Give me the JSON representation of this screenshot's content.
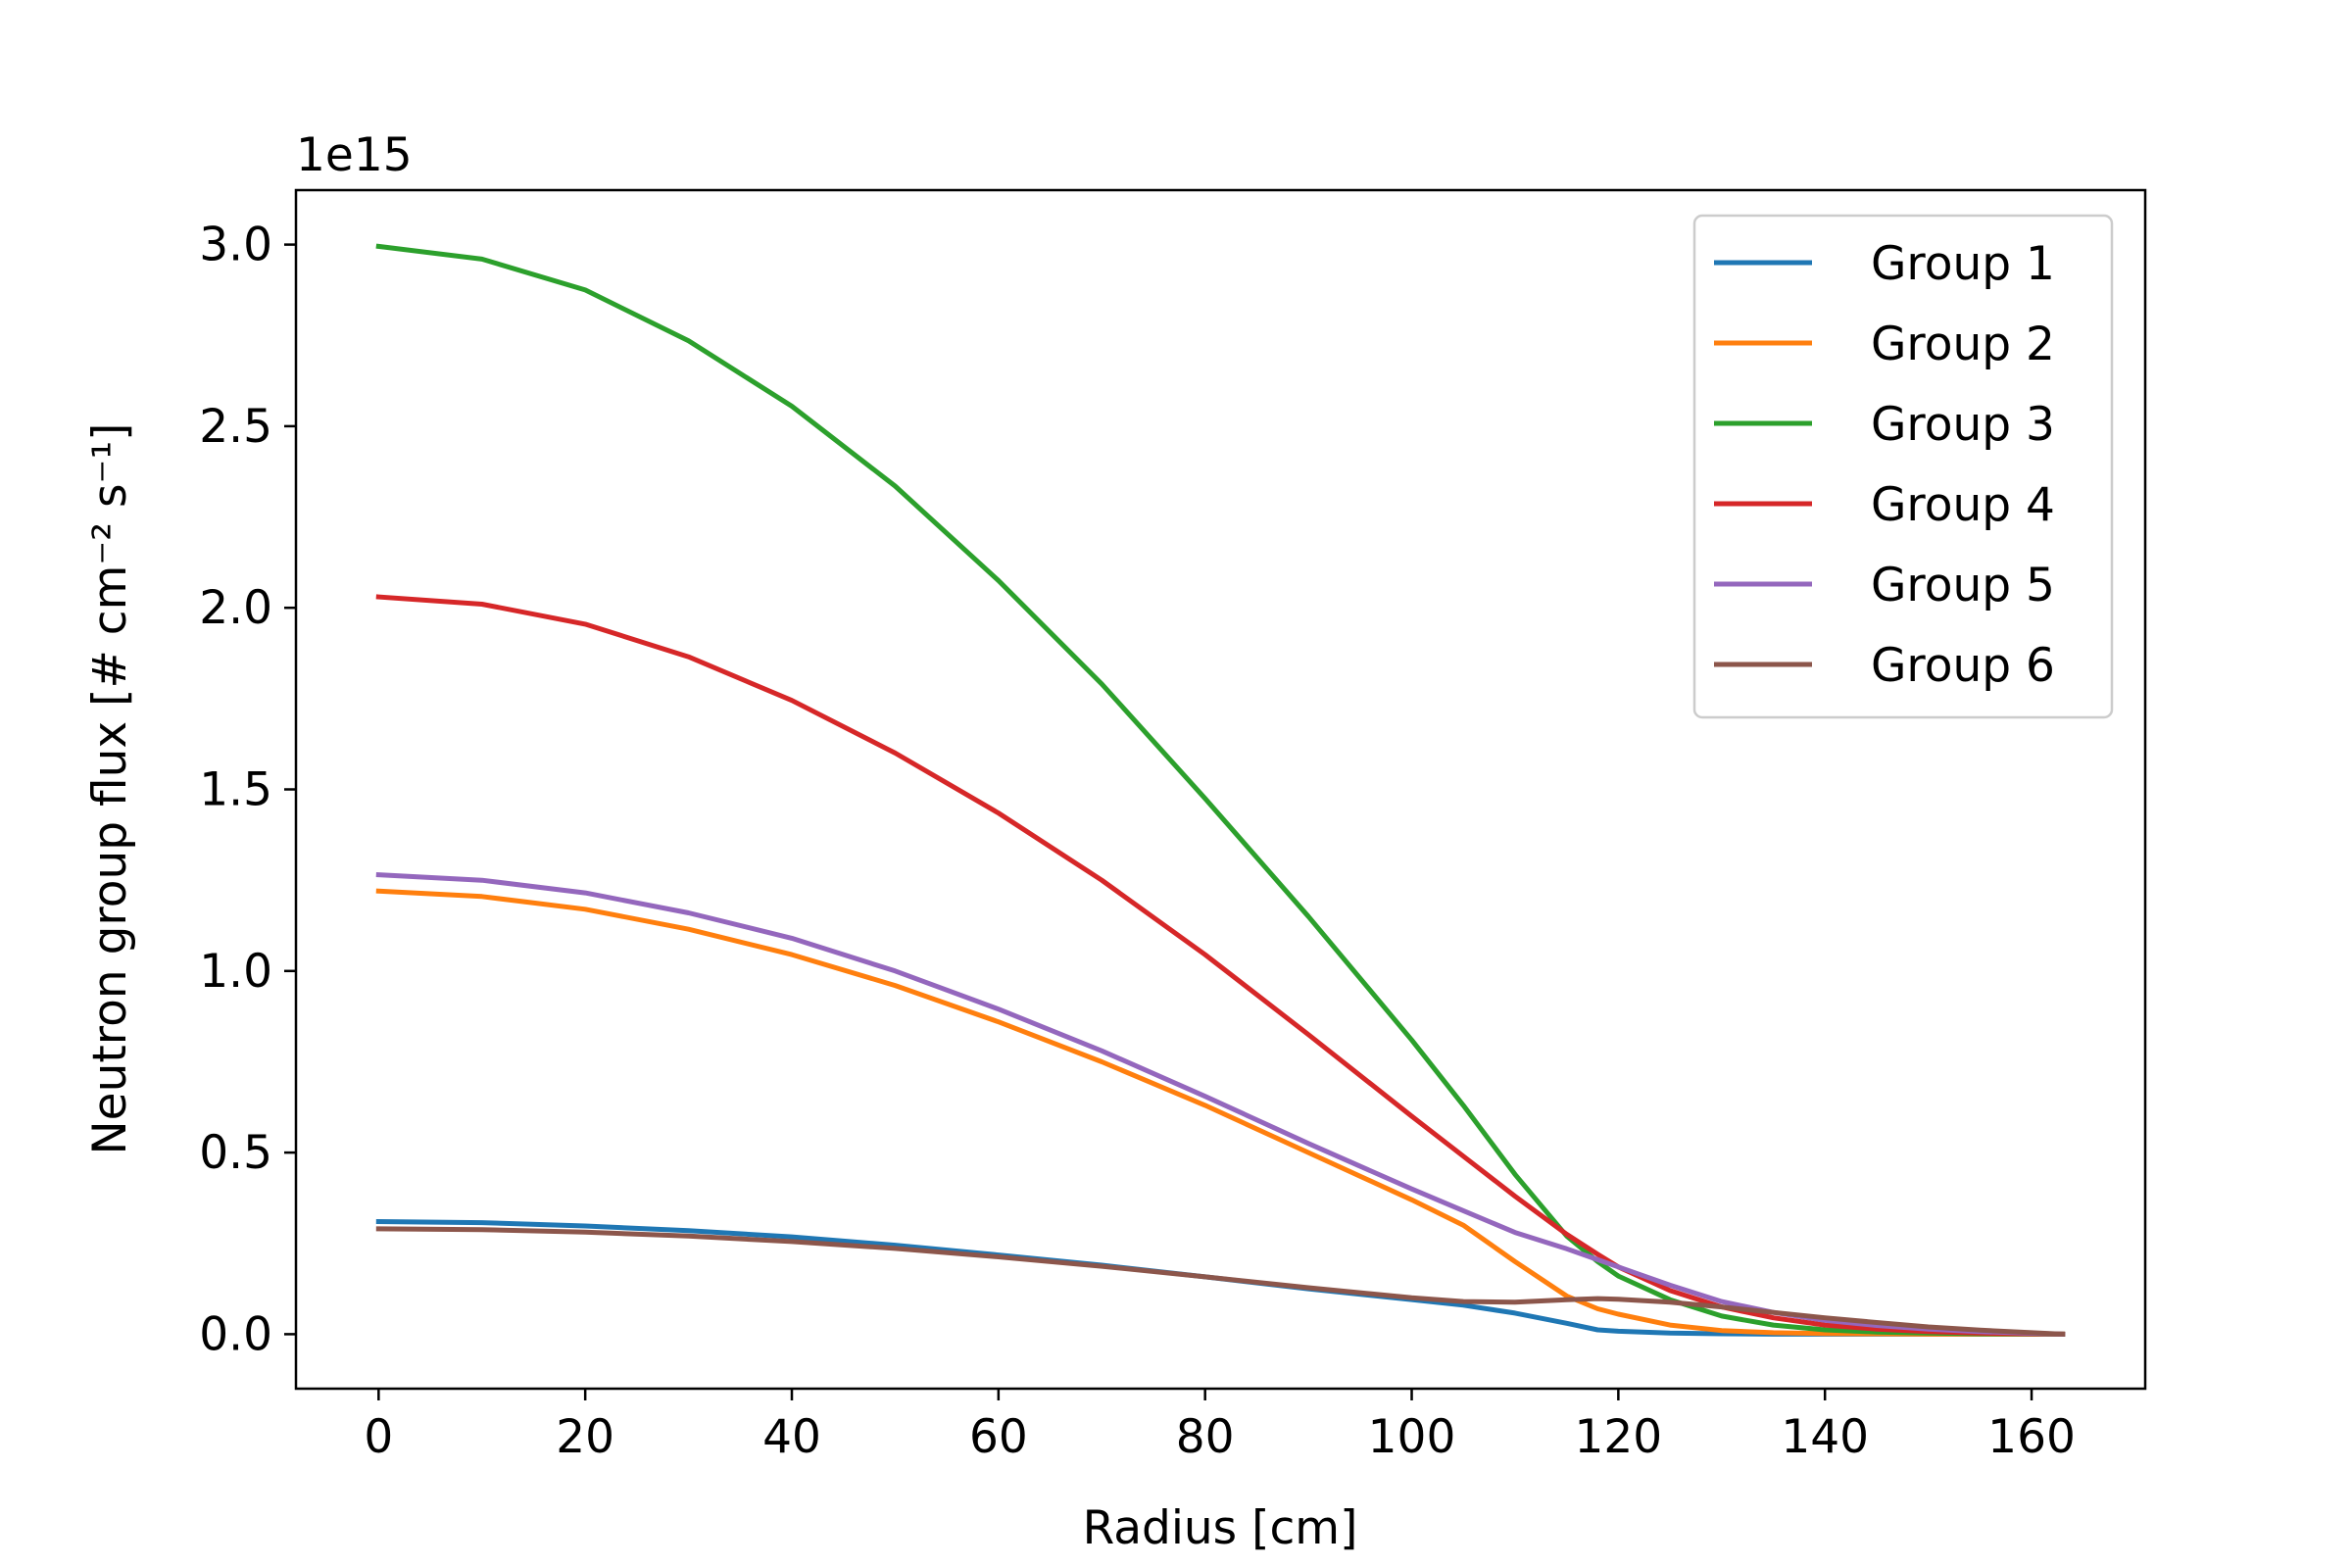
{
  "chart_data": {
    "type": "line",
    "title": "",
    "xlabel": "Radius [cm]",
    "ylabel": "Neutron group flux [# cm⁻² s⁻¹]",
    "y_offset_label": "1e15",
    "xlim": [
      -8,
      171
    ],
    "ylim": [
      -0.15,
      3.15
    ],
    "xticks": [
      0,
      20,
      40,
      60,
      80,
      100,
      120,
      140,
      160
    ],
    "yticks": [
      0.0,
      0.5,
      1.0,
      1.5,
      2.0,
      2.5,
      3.0
    ],
    "xtick_labels": [
      "0",
      "20",
      "40",
      "60",
      "80",
      "100",
      "120",
      "140",
      "160"
    ],
    "ytick_labels": [
      "0.0",
      "0.5",
      "1.0",
      "1.5",
      "2.0",
      "2.5",
      "3.0"
    ],
    "grid": false,
    "legend_position": "top-right",
    "x": [
      0,
      10,
      20,
      30,
      40,
      50,
      60,
      70,
      80,
      90,
      100,
      105,
      110,
      115,
      118,
      120,
      125,
      130,
      135,
      140,
      145,
      150,
      155,
      163
    ],
    "series": [
      {
        "name": "Group 1",
        "color": "#1f77b4",
        "values": [
          0.31,
          0.307,
          0.298,
          0.285,
          0.268,
          0.245,
          0.218,
          0.19,
          0.158,
          0.125,
          0.095,
          0.08,
          0.058,
          0.03,
          0.012,
          0.008,
          0.003,
          0.001,
          0.0,
          0.0,
          0.0,
          0.0,
          0.0,
          0.0
        ]
      },
      {
        "name": "Group 2",
        "color": "#ff7f0e",
        "values": [
          1.22,
          1.205,
          1.17,
          1.115,
          1.045,
          0.96,
          0.86,
          0.75,
          0.63,
          0.5,
          0.37,
          0.3,
          0.2,
          0.105,
          0.07,
          0.055,
          0.025,
          0.01,
          0.004,
          0.002,
          0.001,
          0.0,
          0.0,
          0.0
        ]
      },
      {
        "name": "Group 3",
        "color": "#2ca02c",
        "values": [
          2.995,
          2.96,
          2.875,
          2.735,
          2.555,
          2.335,
          2.075,
          1.79,
          1.475,
          1.15,
          0.81,
          0.63,
          0.44,
          0.27,
          0.2,
          0.16,
          0.095,
          0.05,
          0.025,
          0.012,
          0.006,
          0.003,
          0.001,
          0.0
        ]
      },
      {
        "name": "Group 4",
        "color": "#d62728",
        "values": [
          2.03,
          2.01,
          1.955,
          1.865,
          1.745,
          1.6,
          1.435,
          1.25,
          1.045,
          0.825,
          0.6,
          0.49,
          0.38,
          0.275,
          0.22,
          0.185,
          0.12,
          0.075,
          0.045,
          0.025,
          0.014,
          0.007,
          0.003,
          0.0
        ]
      },
      {
        "name": "Group 5",
        "color": "#9467bd",
        "values": [
          1.265,
          1.25,
          1.215,
          1.16,
          1.09,
          1.0,
          0.895,
          0.78,
          0.655,
          0.525,
          0.4,
          0.34,
          0.28,
          0.235,
          0.205,
          0.185,
          0.135,
          0.09,
          0.06,
          0.038,
          0.024,
          0.014,
          0.007,
          0.0
        ]
      },
      {
        "name": "Group 6",
        "color": "#8c564b",
        "values": [
          0.29,
          0.288,
          0.281,
          0.27,
          0.255,
          0.236,
          0.213,
          0.187,
          0.158,
          0.128,
          0.1,
          0.09,
          0.088,
          0.095,
          0.098,
          0.096,
          0.088,
          0.075,
          0.06,
          0.045,
          0.032,
          0.02,
          0.011,
          0.0
        ]
      }
    ]
  }
}
